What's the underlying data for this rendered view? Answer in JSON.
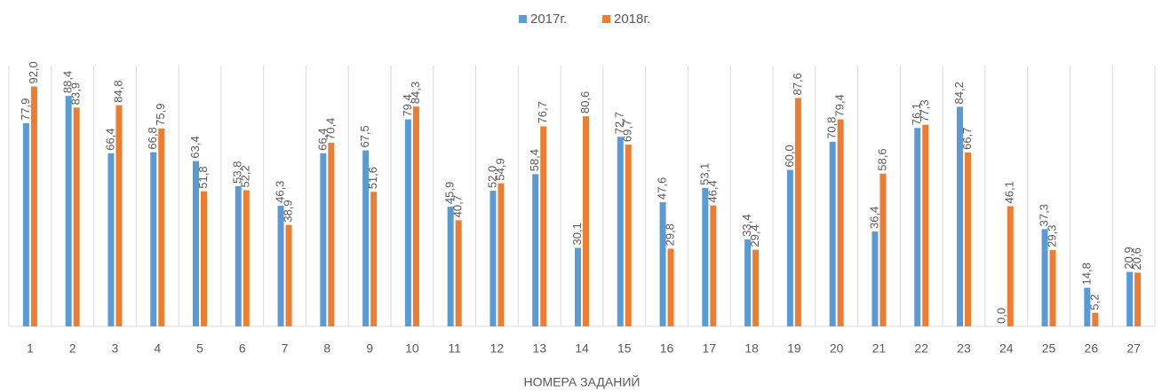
{
  "chart_data": {
    "type": "bar",
    "x_label": "НОМЕРА ЗАДАНИЙ",
    "categories": [
      "1",
      "2",
      "3",
      "4",
      "5",
      "6",
      "7",
      "8",
      "9",
      "10",
      "11",
      "12",
      "13",
      "14",
      "15",
      "16",
      "17",
      "18",
      "19",
      "20",
      "21",
      "22",
      "23",
      "24",
      "25",
      "26",
      "27"
    ],
    "series": [
      {
        "name": "2017г.",
        "color": "#5b9bd5",
        "values": [
          77.9,
          88.4,
          66.4,
          66.8,
          63.4,
          53.8,
          46.3,
          66.4,
          67.5,
          79.4,
          45.9,
          52.0,
          58.4,
          30.1,
          72.7,
          47.6,
          53.1,
          33.4,
          60.0,
          70.8,
          36.4,
          76.1,
          84.2,
          0.0,
          37.3,
          14.8,
          20.9
        ],
        "value_labels": [
          "77,9",
          "88,4",
          "66,4",
          "66,8",
          "63,4",
          "53,8",
          "46,3",
          "66,4",
          "67,5",
          "79,4",
          "45,9",
          "52,0",
          "58,4",
          "30,1",
          "72,7",
          "47,6",
          "53,1",
          "33,4",
          "60,0",
          "70,8",
          "36,4",
          "76,1",
          "84,2",
          "0,0",
          "37,3",
          "14,8",
          "20,9"
        ]
      },
      {
        "name": "2018г.",
        "color": "#ed7d31",
        "values": [
          92.0,
          83.9,
          84.8,
          75.9,
          51.8,
          52.2,
          38.9,
          70.4,
          51.6,
          84.3,
          40.7,
          54.9,
          76.7,
          80.6,
          69.7,
          29.8,
          46.4,
          29.4,
          87.6,
          79.4,
          58.6,
          77.3,
          66.7,
          46.1,
          29.3,
          5.2,
          20.6
        ],
        "value_labels": [
          "92,0",
          "83,9",
          "84,8",
          "75,9",
          "51,8",
          "52,2",
          "38,9",
          "70,4",
          "51,6",
          "84,3",
          "40,7",
          "54,9",
          "76,7",
          "80,6",
          "69,7",
          "29,8",
          "46,4",
          "29,4",
          "87,6",
          "79,4",
          "58,6",
          "77,3",
          "66,7",
          "46,1",
          "29,3",
          "5,2",
          "20,6"
        ]
      }
    ],
    "ylim": [
      0,
      100
    ],
    "legend": "top"
  }
}
